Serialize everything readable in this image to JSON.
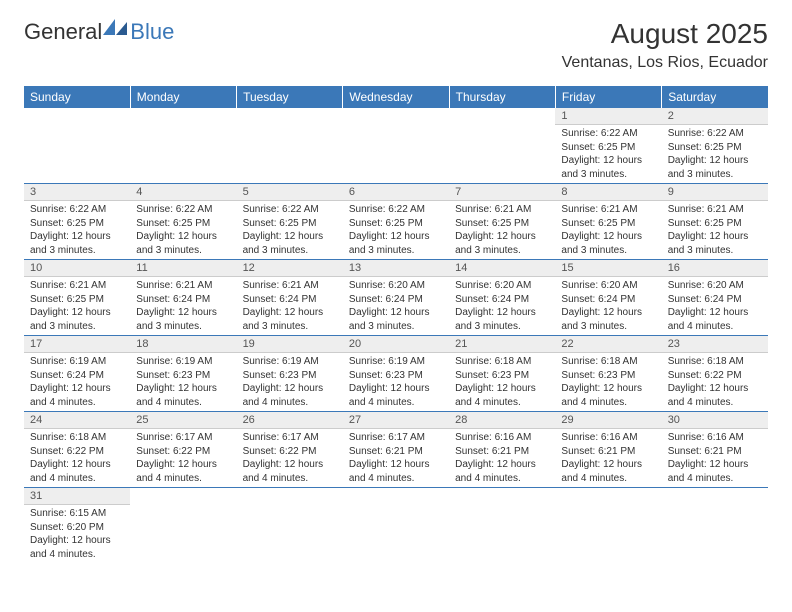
{
  "logo": {
    "general": "General",
    "blue": "Blue"
  },
  "title": "August 2025",
  "location": "Ventanas, Los Rios, Ecuador",
  "colors": {
    "header_bg": "#3b78b8",
    "header_text": "#ffffff",
    "daynum_bg": "#eeeeee",
    "border": "#3b78b8",
    "text": "#333333"
  },
  "day_headers": [
    "Sunday",
    "Monday",
    "Tuesday",
    "Wednesday",
    "Thursday",
    "Friday",
    "Saturday"
  ],
  "weeks": [
    [
      null,
      null,
      null,
      null,
      null,
      {
        "n": "1",
        "sr": "6:22 AM",
        "ss": "6:25 PM",
        "dl": "12 hours and 3 minutes."
      },
      {
        "n": "2",
        "sr": "6:22 AM",
        "ss": "6:25 PM",
        "dl": "12 hours and 3 minutes."
      }
    ],
    [
      {
        "n": "3",
        "sr": "6:22 AM",
        "ss": "6:25 PM",
        "dl": "12 hours and 3 minutes."
      },
      {
        "n": "4",
        "sr": "6:22 AM",
        "ss": "6:25 PM",
        "dl": "12 hours and 3 minutes."
      },
      {
        "n": "5",
        "sr": "6:22 AM",
        "ss": "6:25 PM",
        "dl": "12 hours and 3 minutes."
      },
      {
        "n": "6",
        "sr": "6:22 AM",
        "ss": "6:25 PM",
        "dl": "12 hours and 3 minutes."
      },
      {
        "n": "7",
        "sr": "6:21 AM",
        "ss": "6:25 PM",
        "dl": "12 hours and 3 minutes."
      },
      {
        "n": "8",
        "sr": "6:21 AM",
        "ss": "6:25 PM",
        "dl": "12 hours and 3 minutes."
      },
      {
        "n": "9",
        "sr": "6:21 AM",
        "ss": "6:25 PM",
        "dl": "12 hours and 3 minutes."
      }
    ],
    [
      {
        "n": "10",
        "sr": "6:21 AM",
        "ss": "6:25 PM",
        "dl": "12 hours and 3 minutes."
      },
      {
        "n": "11",
        "sr": "6:21 AM",
        "ss": "6:24 PM",
        "dl": "12 hours and 3 minutes."
      },
      {
        "n": "12",
        "sr": "6:21 AM",
        "ss": "6:24 PM",
        "dl": "12 hours and 3 minutes."
      },
      {
        "n": "13",
        "sr": "6:20 AM",
        "ss": "6:24 PM",
        "dl": "12 hours and 3 minutes."
      },
      {
        "n": "14",
        "sr": "6:20 AM",
        "ss": "6:24 PM",
        "dl": "12 hours and 3 minutes."
      },
      {
        "n": "15",
        "sr": "6:20 AM",
        "ss": "6:24 PM",
        "dl": "12 hours and 3 minutes."
      },
      {
        "n": "16",
        "sr": "6:20 AM",
        "ss": "6:24 PM",
        "dl": "12 hours and 4 minutes."
      }
    ],
    [
      {
        "n": "17",
        "sr": "6:19 AM",
        "ss": "6:24 PM",
        "dl": "12 hours and 4 minutes."
      },
      {
        "n": "18",
        "sr": "6:19 AM",
        "ss": "6:23 PM",
        "dl": "12 hours and 4 minutes."
      },
      {
        "n": "19",
        "sr": "6:19 AM",
        "ss": "6:23 PM",
        "dl": "12 hours and 4 minutes."
      },
      {
        "n": "20",
        "sr": "6:19 AM",
        "ss": "6:23 PM",
        "dl": "12 hours and 4 minutes."
      },
      {
        "n": "21",
        "sr": "6:18 AM",
        "ss": "6:23 PM",
        "dl": "12 hours and 4 minutes."
      },
      {
        "n": "22",
        "sr": "6:18 AM",
        "ss": "6:23 PM",
        "dl": "12 hours and 4 minutes."
      },
      {
        "n": "23",
        "sr": "6:18 AM",
        "ss": "6:22 PM",
        "dl": "12 hours and 4 minutes."
      }
    ],
    [
      {
        "n": "24",
        "sr": "6:18 AM",
        "ss": "6:22 PM",
        "dl": "12 hours and 4 minutes."
      },
      {
        "n": "25",
        "sr": "6:17 AM",
        "ss": "6:22 PM",
        "dl": "12 hours and 4 minutes."
      },
      {
        "n": "26",
        "sr": "6:17 AM",
        "ss": "6:22 PM",
        "dl": "12 hours and 4 minutes."
      },
      {
        "n": "27",
        "sr": "6:17 AM",
        "ss": "6:21 PM",
        "dl": "12 hours and 4 minutes."
      },
      {
        "n": "28",
        "sr": "6:16 AM",
        "ss": "6:21 PM",
        "dl": "12 hours and 4 minutes."
      },
      {
        "n": "29",
        "sr": "6:16 AM",
        "ss": "6:21 PM",
        "dl": "12 hours and 4 minutes."
      },
      {
        "n": "30",
        "sr": "6:16 AM",
        "ss": "6:21 PM",
        "dl": "12 hours and 4 minutes."
      }
    ],
    [
      {
        "n": "31",
        "sr": "6:15 AM",
        "ss": "6:20 PM",
        "dl": "12 hours and 4 minutes."
      },
      null,
      null,
      null,
      null,
      null,
      null
    ]
  ],
  "labels": {
    "sunrise": "Sunrise:",
    "sunset": "Sunset:",
    "daylight": "Daylight:"
  }
}
